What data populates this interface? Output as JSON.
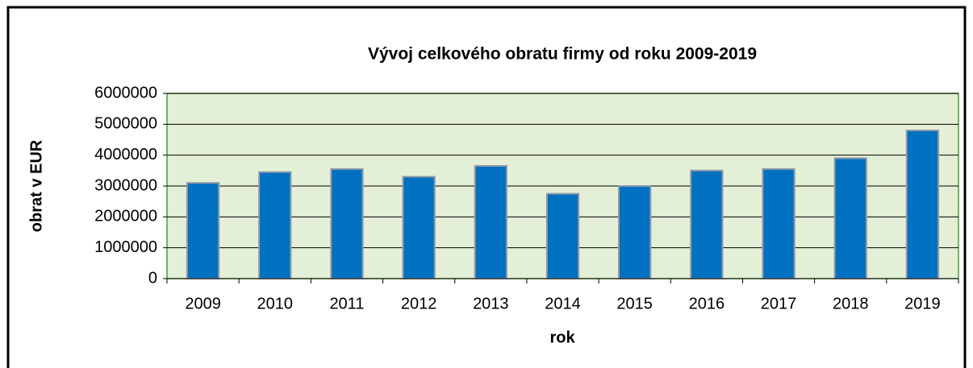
{
  "chart_data": {
    "type": "bar",
    "title": "Vývoj celkového obratu firmy od roku 2009-2019",
    "x_label": "rok",
    "y_label": "obrat v EUR",
    "categories": [
      "2009",
      "2010",
      "2011",
      "2012",
      "2013",
      "2014",
      "2015",
      "2016",
      "2017",
      "2018",
      "2019"
    ],
    "values": [
      3100000,
      3450000,
      3550000,
      3300000,
      3650000,
      2750000,
      3000000,
      3500000,
      3550000,
      3900000,
      4800000
    ],
    "color": "#0070c0",
    "ylim": [
      0,
      6000000
    ],
    "yticks": [
      0,
      1000000,
      2000000,
      3000000,
      4000000,
      5000000,
      6000000
    ],
    "grid": true
  }
}
